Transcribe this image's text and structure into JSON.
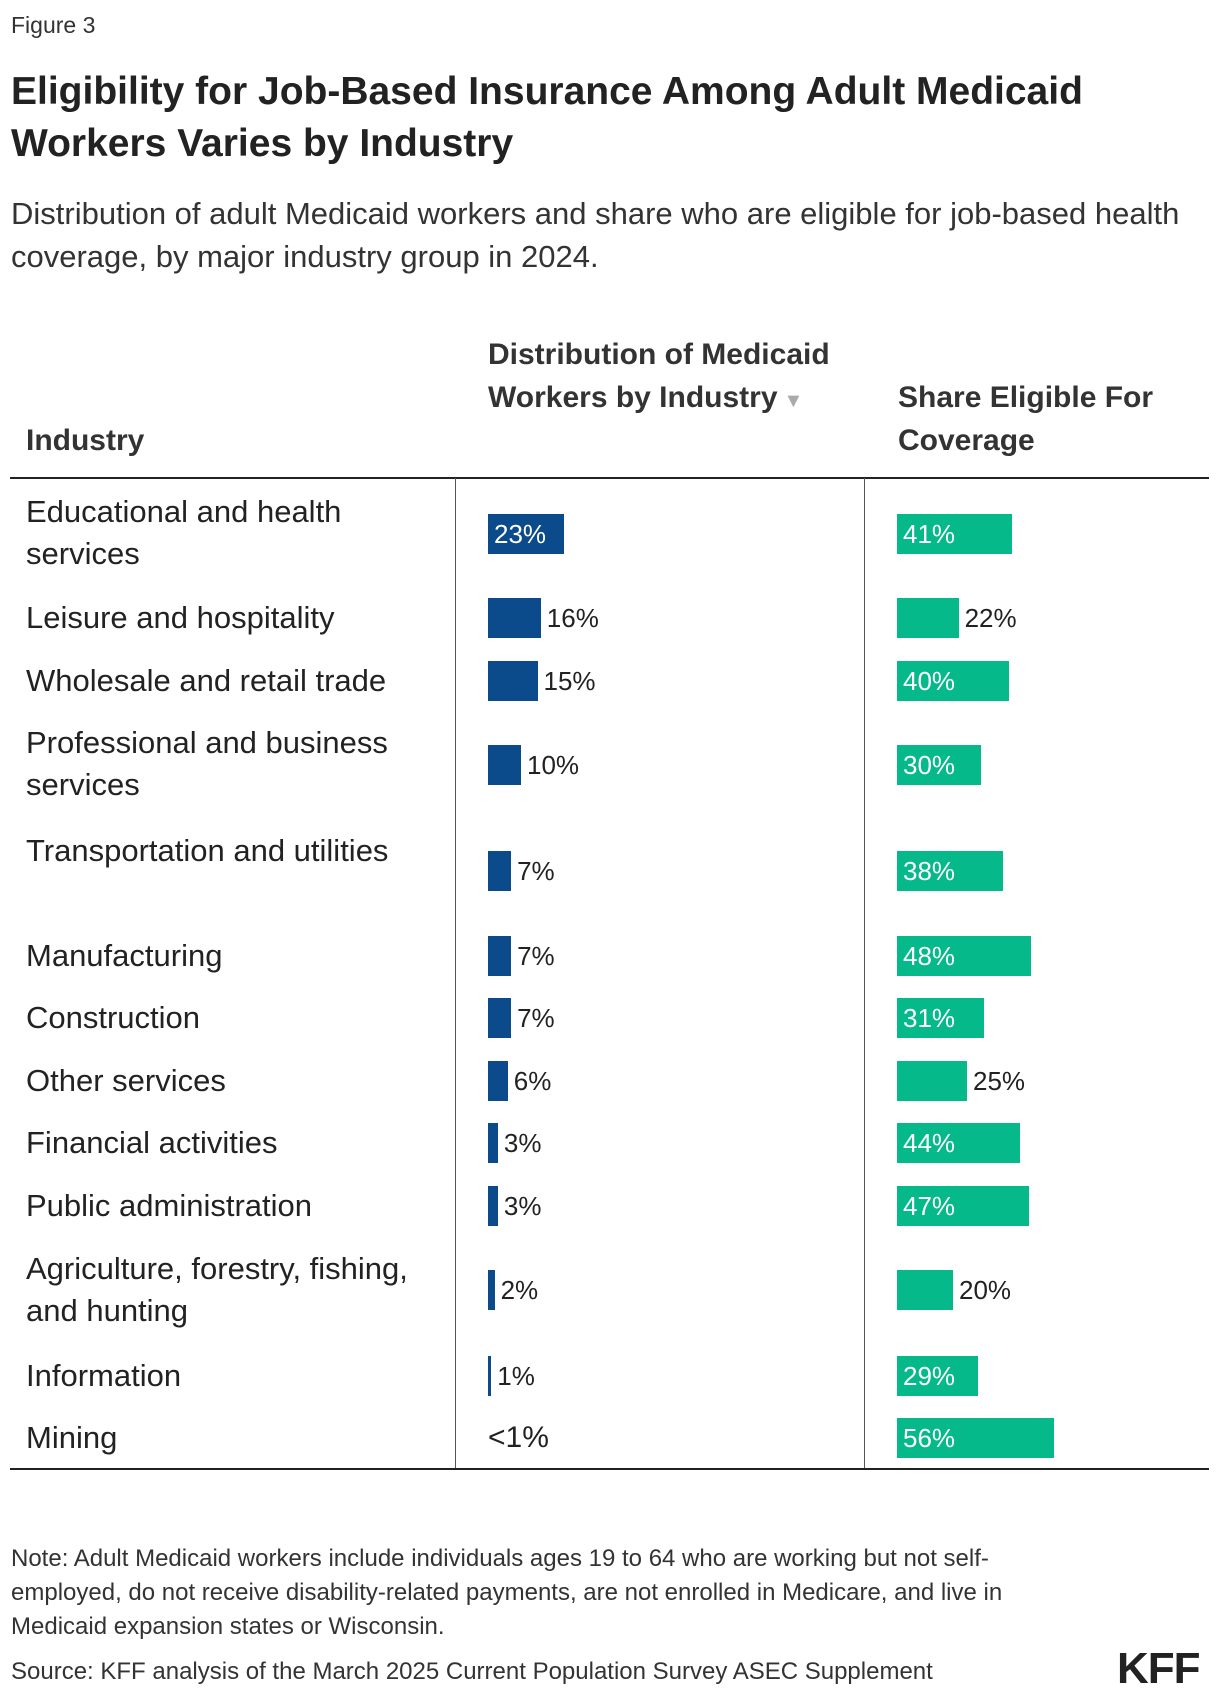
{
  "figure_label": "Figure 3",
  "logo": "KFF",
  "chart_data": {
    "type": "table",
    "title": "Eligibility for Job-Based Insurance Among Adult Medicaid Workers Varies by Industry",
    "subtitle": "Distribution of adult Medicaid workers and share who are eligible for job-based health coverage, by major industry group in 2024.",
    "columns": {
      "industry": "Industry",
      "distribution": "Distribution of Medicaid Workers by Industry",
      "share": "Share Eligible For Coverage"
    },
    "sort_indicator": "▼",
    "colors": {
      "distribution": "#0b4a8b",
      "share": "#06b98a"
    },
    "rows": [
      {
        "industry": "Educational and health services",
        "distribution": 23,
        "distribution_label": "23%",
        "share": 41,
        "share_label": "41%"
      },
      {
        "industry": "Leisure and hospitality",
        "distribution": 16,
        "distribution_label": "16%",
        "share": 22,
        "share_label": "22%"
      },
      {
        "industry": "Wholesale and retail trade",
        "distribution": 15,
        "distribution_label": "15%",
        "share": 40,
        "share_label": "40%"
      },
      {
        "industry": "Professional and business services",
        "distribution": 10,
        "distribution_label": "10%",
        "share": 30,
        "share_label": "30%"
      },
      {
        "industry": "Transportation and utilities",
        "distribution": 7,
        "distribution_label": "7%",
        "share": 38,
        "share_label": "38%"
      },
      {
        "industry": "Manufacturing",
        "distribution": 7,
        "distribution_label": "7%",
        "share": 48,
        "share_label": "48%"
      },
      {
        "industry": "Construction",
        "distribution": 7,
        "distribution_label": "7%",
        "share": 31,
        "share_label": "31%"
      },
      {
        "industry": "Other services",
        "distribution": 6,
        "distribution_label": "6%",
        "share": 25,
        "share_label": "25%"
      },
      {
        "industry": "Financial activities",
        "distribution": 3,
        "distribution_label": "3%",
        "share": 44,
        "share_label": "44%"
      },
      {
        "industry": "Public administration",
        "distribution": 3,
        "distribution_label": "3%",
        "share": 47,
        "share_label": "47%"
      },
      {
        "industry": "Agriculture, forestry, fishing, and hunting",
        "distribution": 2,
        "distribution_label": "2%",
        "share": 20,
        "share_label": "20%"
      },
      {
        "industry": "Information",
        "distribution": 1,
        "distribution_label": "1%",
        "share": 29,
        "share_label": "29%"
      },
      {
        "industry": "Mining",
        "distribution": 0,
        "distribution_label": "<1%",
        "share": 56,
        "share_label": "56%"
      }
    ]
  },
  "note": "Note: Adult Medicaid workers include individuals ages 19 to 64 who are working but not self-employed, do not receive disability-related payments, are not enrolled in Medicare, and live in Medicaid expansion states or Wisconsin.",
  "source": "Source: KFF analysis of the March 2025 Current Population Survey ASEC Supplement"
}
